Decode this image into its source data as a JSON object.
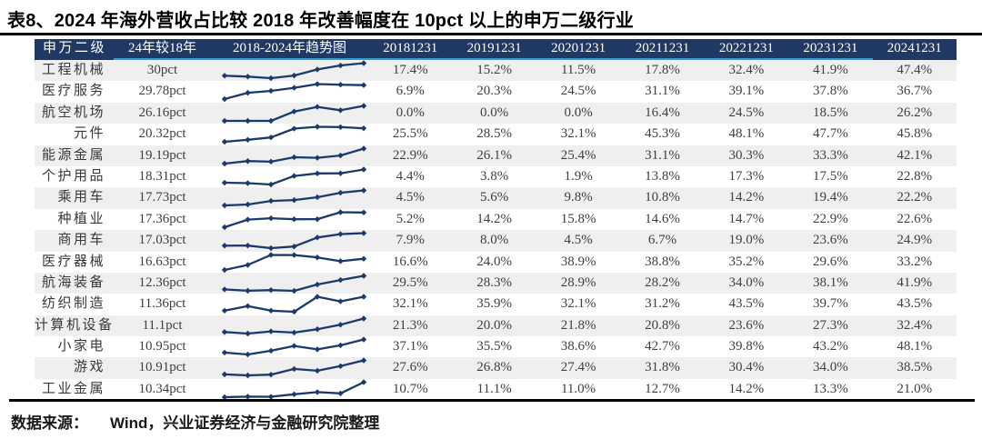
{
  "title": "表8、2024 年海外营收占比较 2018 年改善幅度在 10pct 以上的申万二级行业",
  "source": {
    "label": "数据来源：",
    "text": "Wind，兴业证券经济与金融研究院整理"
  },
  "colors": {
    "header_bg": "#1F3864",
    "header_text": "#FFFFFF",
    "header_accent": "#2E9CD8",
    "row_alt_bg": "#EFEFEF",
    "row_bg": "#FFFFFF",
    "body_text": "#3F3F3F",
    "sparkline": "#1B3A6B",
    "title_text": "#000000"
  },
  "table": {
    "headers": [
      "申万二级",
      "24年较18年",
      "2018-2024年趋势图",
      "20181231",
      "20191231",
      "20201231",
      "20211231",
      "20221231",
      "20231231",
      "20241231"
    ]
  },
  "chart_data": {
    "type": "table",
    "title": "表8、2024 年海外营收占比较 2018 年改善幅度在 10pct 以上的申万二级行业",
    "value_unit": "%",
    "trend_column_label": "2018-2024年趋势图",
    "change_column_label": "24年较18年",
    "industry_column_label": "申万二级",
    "date_columns": [
      "20181231",
      "20191231",
      "20201231",
      "20211231",
      "20221231",
      "20231231",
      "20241231"
    ],
    "rows": [
      {
        "industry": "工程机械",
        "change": "30pct",
        "values": [
          17.4,
          15.2,
          11.5,
          17.8,
          32.4,
          41.9,
          47.4
        ]
      },
      {
        "industry": "医疗服务",
        "change": "29.78pct",
        "values": [
          6.9,
          20.3,
          24.5,
          31.1,
          39.1,
          37.8,
          36.7
        ]
      },
      {
        "industry": "航空机场",
        "change": "26.16pct",
        "values": [
          0.0,
          0.0,
          0.0,
          16.4,
          24.5,
          18.5,
          26.2
        ]
      },
      {
        "industry": "元件",
        "change": "20.32pct",
        "values": [
          25.5,
          28.5,
          32.1,
          45.3,
          48.1,
          47.7,
          45.8
        ]
      },
      {
        "industry": "能源金属",
        "change": "19.19pct",
        "values": [
          22.9,
          26.1,
          25.4,
          31.1,
          30.3,
          33.3,
          42.1
        ]
      },
      {
        "industry": "个护用品",
        "change": "18.31pct",
        "values": [
          4.4,
          3.8,
          1.9,
          13.8,
          17.3,
          17.5,
          22.8
        ]
      },
      {
        "industry": "乘用车",
        "change": "17.73pct",
        "values": [
          4.5,
          5.6,
          9.8,
          10.8,
          14.2,
          19.4,
          22.2
        ]
      },
      {
        "industry": "种植业",
        "change": "17.36pct",
        "values": [
          5.2,
          14.2,
          15.8,
          14.6,
          14.7,
          22.9,
          22.6
        ]
      },
      {
        "industry": "商用车",
        "change": "17.03pct",
        "values": [
          7.9,
          8.0,
          4.5,
          6.7,
          19.0,
          23.6,
          24.9
        ]
      },
      {
        "industry": "医疗器械",
        "change": "16.63pct",
        "values": [
          16.6,
          24.0,
          38.9,
          38.8,
          35.2,
          29.6,
          33.2
        ]
      },
      {
        "industry": "航海装备",
        "change": "12.36pct",
        "values": [
          29.5,
          28.3,
          28.9,
          28.2,
          34.0,
          38.1,
          41.9
        ]
      },
      {
        "industry": "纺织制造",
        "change": "11.36pct",
        "values": [
          32.1,
          35.9,
          32.1,
          31.2,
          43.5,
          39.7,
          43.5
        ]
      },
      {
        "industry": "计算机设备",
        "change": "11.1pct",
        "values": [
          21.3,
          20.0,
          21.8,
          20.8,
          23.6,
          27.3,
          32.4
        ]
      },
      {
        "industry": "小家电",
        "change": "10.95pct",
        "values": [
          37.1,
          35.5,
          38.6,
          42.7,
          39.8,
          43.2,
          48.1
        ]
      },
      {
        "industry": "游戏",
        "change": "10.91pct",
        "values": [
          27.6,
          26.8,
          27.4,
          31.8,
          30.4,
          34.0,
          38.5
        ]
      },
      {
        "industry": "工业金属",
        "change": "10.34pct",
        "values": [
          10.7,
          11.1,
          11.0,
          12.7,
          14.2,
          13.3,
          21.0
        ]
      }
    ]
  }
}
